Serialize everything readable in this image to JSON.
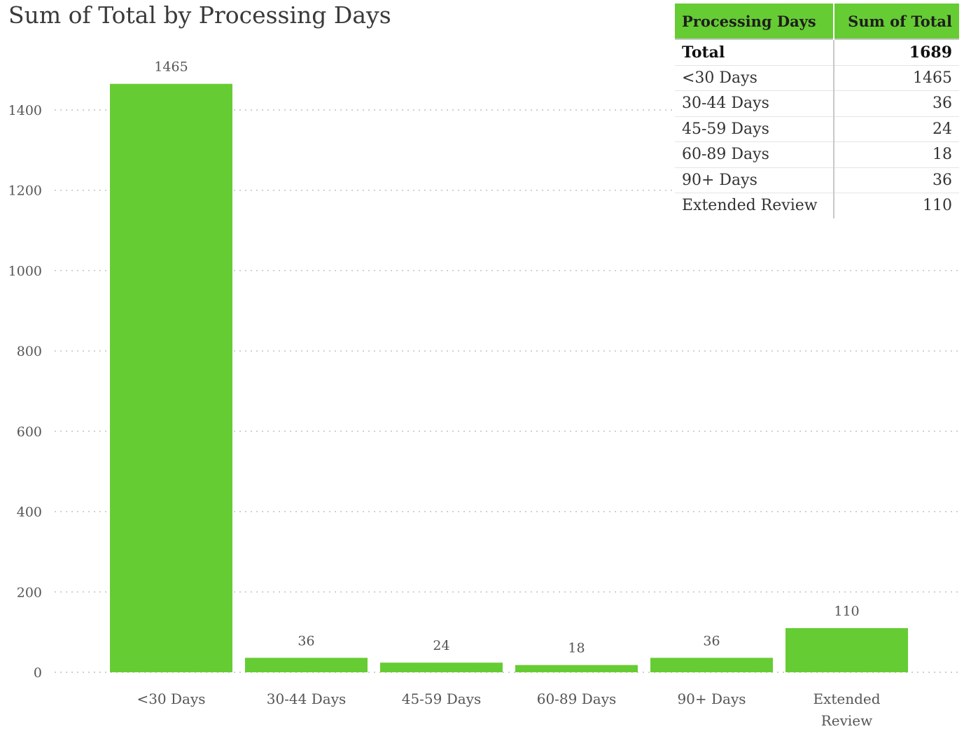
{
  "chart_data": {
    "type": "bar",
    "title": "Sum of Total by Processing Days",
    "categories": [
      "<30 Days",
      "30-44 Days",
      "45-59 Days",
      "60-89 Days",
      "90+ Days",
      "Extended Review"
    ],
    "values": [
      1465,
      36,
      24,
      18,
      36,
      110
    ],
    "xlabel": "",
    "ylabel": "",
    "ylim": [
      0,
      1400
    ],
    "yticks": [
      0,
      200,
      400,
      600,
      800,
      1000,
      1200,
      1400
    ],
    "grid": true,
    "bar_color": "#66cc33",
    "data_labels": true
  },
  "table": {
    "headers": [
      "Processing Days",
      "Sum of Total"
    ],
    "total_row": [
      "Total",
      "1689"
    ],
    "rows": [
      [
        "<30 Days",
        "1465"
      ],
      [
        "30-44 Days",
        "36"
      ],
      [
        "45-59 Days",
        "24"
      ],
      [
        "60-89 Days",
        "18"
      ],
      [
        "90+ Days",
        "36"
      ],
      [
        "Extended Review",
        "110"
      ]
    ],
    "header_color": "#66cc33"
  }
}
